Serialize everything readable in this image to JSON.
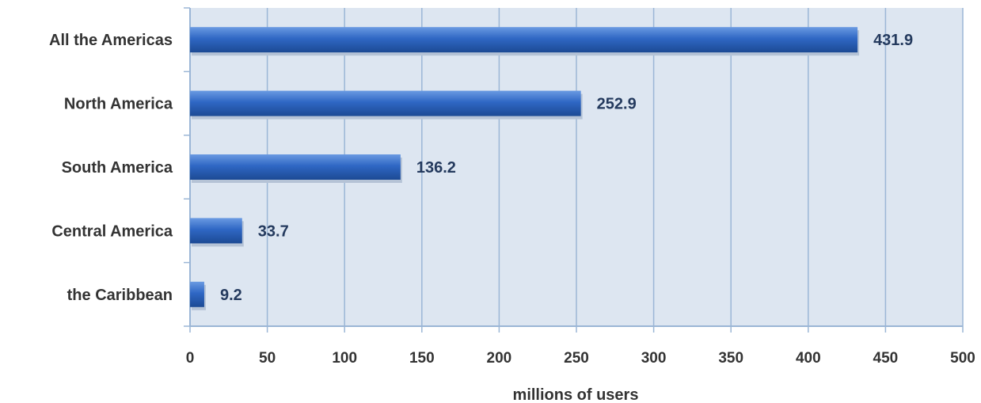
{
  "chart_data": {
    "type": "bar",
    "orientation": "horizontal",
    "categories": [
      "All the Americas",
      "North America",
      "South America",
      "Central America",
      "the Caribbean"
    ],
    "values": [
      431.9,
      252.9,
      136.2,
      33.7,
      9.2
    ],
    "value_labels": [
      "431.9",
      "252.9",
      "136.2",
      "33.7",
      "9.2"
    ],
    "xlabel": "millions of users",
    "ylabel": "",
    "xlim": [
      0,
      500
    ],
    "xticks": [
      "0",
      "50",
      "100",
      "150",
      "200",
      "250",
      "300",
      "350",
      "400",
      "450",
      "500"
    ],
    "grid": "vertical",
    "colors": {
      "plot_background": "#dde6f1",
      "grid": "#9bb6d6",
      "bar_light": "#5b8fde",
      "bar_mid": "#2f67c4",
      "bar_dark": "#1f4f9e",
      "text": "#333333",
      "value_text": "#243a5e"
    }
  }
}
